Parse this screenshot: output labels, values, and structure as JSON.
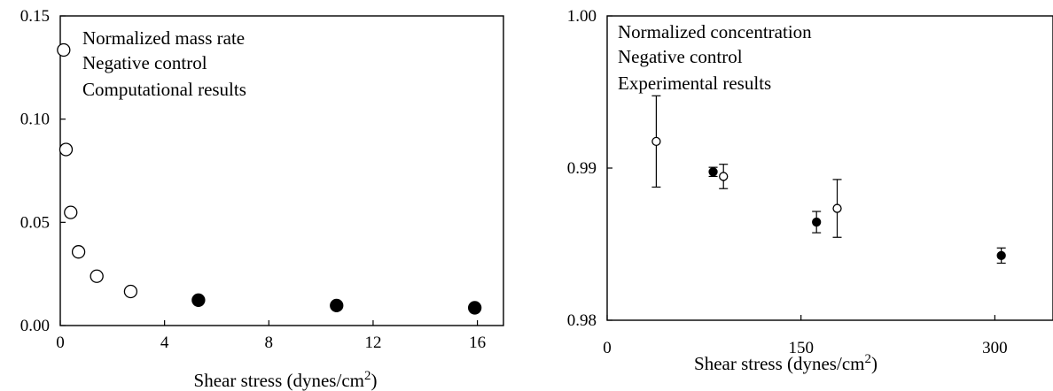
{
  "chart_data": [
    {
      "type": "scatter",
      "annotation": [
        "Normalized mass rate",
        "Negative control",
        "Computational results"
      ],
      "xlabel": "Shear stress (dynes/cm",
      "xlabel_sup": "2",
      "xlabel_close": ")",
      "ylabel": "",
      "xlim": [
        0,
        17
      ],
      "ylim": [
        0,
        0.15
      ],
      "xticks": [
        "0",
        "4",
        "8",
        "12",
        "16"
      ],
      "xtick_values": [
        0,
        4,
        8,
        12,
        16
      ],
      "yticks": [
        "0.00",
        "0.05",
        "0.10",
        "0.15"
      ],
      "ytick_values": [
        0,
        0.05,
        0.1,
        0.15
      ],
      "grid": false,
      "series": [
        {
          "marker": "open-circle",
          "color": "#000000",
          "points": [
            [
              0.13,
              0.1335
            ],
            [
              0.22,
              0.0853
            ],
            [
              0.4,
              0.0548
            ],
            [
              0.7,
              0.0357
            ],
            [
              1.4,
              0.0239
            ],
            [
              2.7,
              0.0165
            ]
          ]
        },
        {
          "marker": "filled-circle",
          "color": "#000000",
          "points": [
            [
              5.3,
              0.0123
            ],
            [
              10.6,
              0.0097
            ],
            [
              15.9,
              0.0086
            ]
          ]
        }
      ]
    },
    {
      "type": "scatter",
      "annotation": [
        "Normalized concentration",
        "Negative control",
        "Experimental results"
      ],
      "xlabel": "Shear stress (dynes/cm",
      "xlabel_sup": "2",
      "xlabel_close": ")",
      "ylabel": "",
      "xlim": [
        0,
        345
      ],
      "ylim": [
        0.98,
        1.0
      ],
      "xticks": [
        "0",
        "150",
        "300"
      ],
      "xtick_values": [
        0,
        150,
        300
      ],
      "yticks": [
        "0.98",
        "0.99",
        "1.00"
      ],
      "ytick_values": [
        0.98,
        0.99,
        1.0
      ],
      "grid": false,
      "series": [
        {
          "marker": "open-circle",
          "color": "#000000",
          "points": [
            {
              "x": 38,
              "y": 0.99175,
              "err": 0.003
            },
            {
              "x": 90,
              "y": 0.98945,
              "err": 0.0008
            },
            {
              "x": 178,
              "y": 0.98735,
              "err": 0.0019
            }
          ]
        },
        {
          "marker": "filled-circle",
          "color": "#000000",
          "points": [
            {
              "x": 82,
              "y": 0.98975,
              "err": 0.0003
            },
            {
              "x": 162,
              "y": 0.98645,
              "err": 0.0007
            },
            {
              "x": 305,
              "y": 0.98425,
              "err": 0.0005
            }
          ]
        }
      ]
    }
  ]
}
